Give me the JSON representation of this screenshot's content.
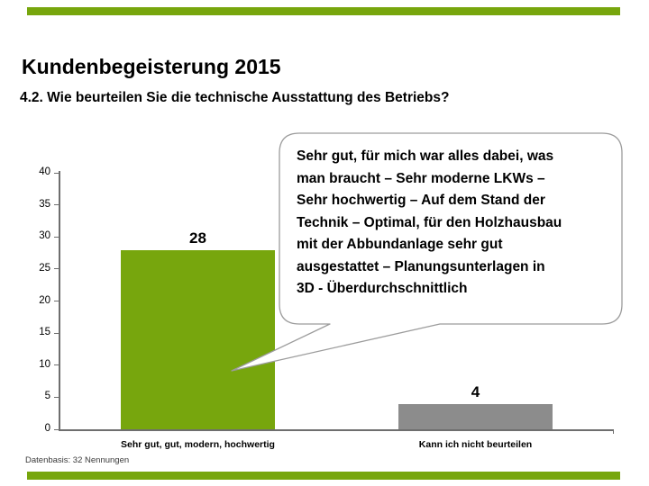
{
  "slide": {
    "title": "Kundenbegeisterung 2015",
    "subtitle": "4.2. Wie beurteilen Sie die technische Ausstattung des Betriebs?",
    "footnote": "Datenbasis: 32 Nennungen",
    "accent_color": "#77A60D"
  },
  "callout": {
    "text": "Sehr gut, für mich war alles dabei, was\nman braucht – Sehr moderne LKWs –\nSehr hochwertig – Auf dem Stand der\nTechnik – Optimal, für den Holzhausbau\nmit der Abbundanlage sehr gut\nausgestattet – Planungsunterlagen in\n3D - Überdurchschnittlich",
    "border_color": "#9C9C9C",
    "fill_color": "#ffffff"
  },
  "chart_data": {
    "type": "bar",
    "title": "",
    "xlabel": "",
    "ylabel": "",
    "categories": [
      "Sehr gut, gut, modern, hochwertig",
      "Kann ich nicht beurteilen"
    ],
    "values": [
      28,
      4
    ],
    "value_labels": [
      "28",
      "4"
    ],
    "bar_colors": [
      "#77A60D",
      "#8C8C8C"
    ],
    "ylim": [
      0,
      40
    ],
    "yticks": [
      0,
      5,
      10,
      15,
      20,
      25,
      30,
      35,
      40
    ],
    "grid": false,
    "legend": false,
    "axis_color": "#6e6e6e"
  }
}
